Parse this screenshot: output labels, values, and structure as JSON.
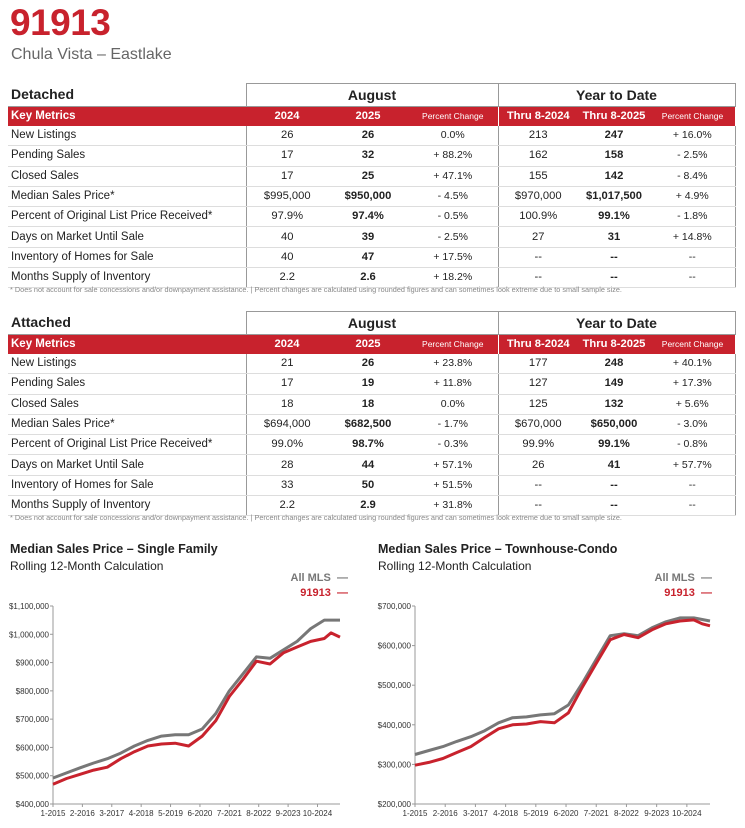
{
  "header": {
    "zip": "91913",
    "area": "Chula Vista – Eastlake"
  },
  "column_headers": {
    "key_metrics": "Key Metrics",
    "month_group": "August",
    "ytd_group": "Year to Date",
    "y1": "2024",
    "y2": "2025",
    "pct": "Percent Change",
    "ytd1": "Thru 8-2024",
    "ytd2": "Thru 8-2025"
  },
  "detached": {
    "section_title": "Detached",
    "rows": [
      {
        "label": "New Listings",
        "m1": "26",
        "m2": "26",
        "mc": "0.0%",
        "y1": "213",
        "y2": "247",
        "yc": "+ 16.0%"
      },
      {
        "label": "Pending Sales",
        "m1": "17",
        "m2": "32",
        "mc": "+ 88.2%",
        "y1": "162",
        "y2": "158",
        "yc": "- 2.5%"
      },
      {
        "label": "Closed Sales",
        "m1": "17",
        "m2": "25",
        "mc": "+ 47.1%",
        "y1": "155",
        "y2": "142",
        "yc": "- 8.4%"
      },
      {
        "label": "Median Sales Price*",
        "m1": "$995,000",
        "m2": "$950,000",
        "mc": "- 4.5%",
        "y1": "$970,000",
        "y2": "$1,017,500",
        "yc": "+ 4.9%"
      },
      {
        "label": "Percent of Original List Price Received*",
        "m1": "97.9%",
        "m2": "97.4%",
        "mc": "- 0.5%",
        "y1": "100.9%",
        "y2": "99.1%",
        "yc": "- 1.8%"
      },
      {
        "label": "Days on Market Until Sale",
        "m1": "40",
        "m2": "39",
        "mc": "- 2.5%",
        "y1": "27",
        "y2": "31",
        "yc": "+ 14.8%"
      },
      {
        "label": "Inventory of Homes for Sale",
        "m1": "40",
        "m2": "47",
        "mc": "+ 17.5%",
        "y1": "--",
        "y2": "--",
        "yc": "--"
      },
      {
        "label": "Months Supply of Inventory",
        "m1": "2.2",
        "m2": "2.6",
        "mc": "+ 18.2%",
        "y1": "--",
        "y2": "--",
        "yc": "--"
      }
    ]
  },
  "attached": {
    "section_title": "Attached",
    "rows": [
      {
        "label": "New Listings",
        "m1": "21",
        "m2": "26",
        "mc": "+ 23.8%",
        "y1": "177",
        "y2": "248",
        "yc": "+ 40.1%"
      },
      {
        "label": "Pending Sales",
        "m1": "17",
        "m2": "19",
        "mc": "+ 11.8%",
        "y1": "127",
        "y2": "149",
        "yc": "+ 17.3%"
      },
      {
        "label": "Closed Sales",
        "m1": "18",
        "m2": "18",
        "mc": "0.0%",
        "y1": "125",
        "y2": "132",
        "yc": "+ 5.6%"
      },
      {
        "label": "Median Sales Price*",
        "m1": "$694,000",
        "m2": "$682,500",
        "mc": "- 1.7%",
        "y1": "$670,000",
        "y2": "$650,000",
        "yc": "- 3.0%"
      },
      {
        "label": "Percent of Original List Price Received*",
        "m1": "99.0%",
        "m2": "98.7%",
        "mc": "- 0.3%",
        "y1": "99.9%",
        "y2": "99.1%",
        "yc": "- 0.8%"
      },
      {
        "label": "Days on Market Until Sale",
        "m1": "28",
        "m2": "44",
        "mc": "+ 57.1%",
        "y1": "26",
        "y2": "41",
        "yc": "+ 57.7%"
      },
      {
        "label": "Inventory of Homes for Sale",
        "m1": "33",
        "m2": "50",
        "mc": "+ 51.5%",
        "y1": "--",
        "y2": "--",
        "yc": "--"
      },
      {
        "label": "Months Supply of Inventory",
        "m1": "2.2",
        "m2": "2.9",
        "mc": "+ 31.8%",
        "y1": "--",
        "y2": "--",
        "yc": "--"
      }
    ]
  },
  "footnote": "* Does not account for sale concessions and/or downpayment assistance.  |  Percent changes are calculated using rounded figures and can sometimes look extreme due to small sample size.",
  "colors": {
    "accent": "#c8222d",
    "gray_line": "#777777"
  },
  "chart_data": [
    {
      "type": "line",
      "title": "Median Sales Price – Single Family",
      "subtitle": "Rolling 12-Month Calculation",
      "x_ticks": [
        "1-2015",
        "2-2016",
        "3-2017",
        "4-2018",
        "5-2019",
        "6-2020",
        "7-2021",
        "8-2022",
        "9-2023",
        "10-2024"
      ],
      "y_ticks": [
        "$400,000",
        "$500,000",
        "$600,000",
        "$700,000",
        "$800,000",
        "$900,000",
        "$1,000,000",
        "$1,100,000"
      ],
      "ylim": [
        400000,
        1100000
      ],
      "x_start": 2015.0,
      "x_end": 2025.58,
      "series": [
        {
          "name": "All MLS",
          "color": "#777777",
          "points": [
            [
              2015.0,
              492000
            ],
            [
              2015.5,
              510000
            ],
            [
              2016.0,
              528000
            ],
            [
              2016.5,
              545000
            ],
            [
              2017.0,
              560000
            ],
            [
              2017.5,
              580000
            ],
            [
              2018.0,
              605000
            ],
            [
              2018.5,
              625000
            ],
            [
              2019.0,
              640000
            ],
            [
              2019.5,
              645000
            ],
            [
              2020.0,
              645000
            ],
            [
              2020.5,
              665000
            ],
            [
              2021.0,
              720000
            ],
            [
              2021.5,
              800000
            ],
            [
              2022.0,
              860000
            ],
            [
              2022.5,
              920000
            ],
            [
              2023.0,
              915000
            ],
            [
              2023.5,
              945000
            ],
            [
              2024.0,
              975000
            ],
            [
              2024.5,
              1020000
            ],
            [
              2025.0,
              1050000
            ],
            [
              2025.58,
              1050000
            ]
          ]
        },
        {
          "name": "91913",
          "color": "#c8222d",
          "points": [
            [
              2015.0,
              470000
            ],
            [
              2015.5,
              490000
            ],
            [
              2016.0,
              505000
            ],
            [
              2016.5,
              520000
            ],
            [
              2017.0,
              530000
            ],
            [
              2017.5,
              560000
            ],
            [
              2018.0,
              585000
            ],
            [
              2018.5,
              605000
            ],
            [
              2019.0,
              612000
            ],
            [
              2019.5,
              615000
            ],
            [
              2020.0,
              605000
            ],
            [
              2020.5,
              640000
            ],
            [
              2021.0,
              695000
            ],
            [
              2021.5,
              780000
            ],
            [
              2022.0,
              840000
            ],
            [
              2022.5,
              905000
            ],
            [
              2023.0,
              895000
            ],
            [
              2023.5,
              935000
            ],
            [
              2024.0,
              955000
            ],
            [
              2024.5,
              975000
            ],
            [
              2025.0,
              985000
            ],
            [
              2025.25,
              1005000
            ],
            [
              2025.58,
              990000
            ]
          ]
        }
      ]
    },
    {
      "type": "line",
      "title": "Median Sales Price – Townhouse-Condo",
      "subtitle": "Rolling 12-Month Calculation",
      "x_ticks": [
        "1-2015",
        "2-2016",
        "3-2017",
        "4-2018",
        "5-2019",
        "6-2020",
        "7-2021",
        "8-2022",
        "9-2023",
        "10-2024"
      ],
      "y_ticks": [
        "$200,000",
        "$300,000",
        "$400,000",
        "$500,000",
        "$600,000",
        "$700,000"
      ],
      "ylim": [
        200000,
        700000
      ],
      "x_start": 2015.0,
      "x_end": 2025.58,
      "series": [
        {
          "name": "All MLS",
          "color": "#777777",
          "points": [
            [
              2015.0,
              325000
            ],
            [
              2015.5,
              335000
            ],
            [
              2016.0,
              345000
            ],
            [
              2016.5,
              358000
            ],
            [
              2017.0,
              370000
            ],
            [
              2017.5,
              385000
            ],
            [
              2018.0,
              405000
            ],
            [
              2018.5,
              418000
            ],
            [
              2019.0,
              420000
            ],
            [
              2019.5,
              425000
            ],
            [
              2020.0,
              428000
            ],
            [
              2020.5,
              450000
            ],
            [
              2021.0,
              505000
            ],
            [
              2021.5,
              565000
            ],
            [
              2022.0,
              625000
            ],
            [
              2022.5,
              630000
            ],
            [
              2023.0,
              625000
            ],
            [
              2023.5,
              645000
            ],
            [
              2024.0,
              660000
            ],
            [
              2024.5,
              670000
            ],
            [
              2025.0,
              670000
            ],
            [
              2025.58,
              662000
            ]
          ]
        },
        {
          "name": "91913",
          "color": "#c8222d",
          "points": [
            [
              2015.0,
              298000
            ],
            [
              2015.5,
              305000
            ],
            [
              2016.0,
              315000
            ],
            [
              2016.5,
              330000
            ],
            [
              2017.0,
              345000
            ],
            [
              2017.5,
              368000
            ],
            [
              2018.0,
              390000
            ],
            [
              2018.5,
              400000
            ],
            [
              2019.0,
              402000
            ],
            [
              2019.5,
              408000
            ],
            [
              2020.0,
              405000
            ],
            [
              2020.5,
              430000
            ],
            [
              2021.0,
              495000
            ],
            [
              2021.5,
              555000
            ],
            [
              2022.0,
              615000
            ],
            [
              2022.5,
              628000
            ],
            [
              2023.0,
              620000
            ],
            [
              2023.5,
              640000
            ],
            [
              2024.0,
              655000
            ],
            [
              2024.5,
              662000
            ],
            [
              2025.0,
              665000
            ],
            [
              2025.3,
              655000
            ],
            [
              2025.58,
              650000
            ]
          ]
        }
      ]
    }
  ]
}
